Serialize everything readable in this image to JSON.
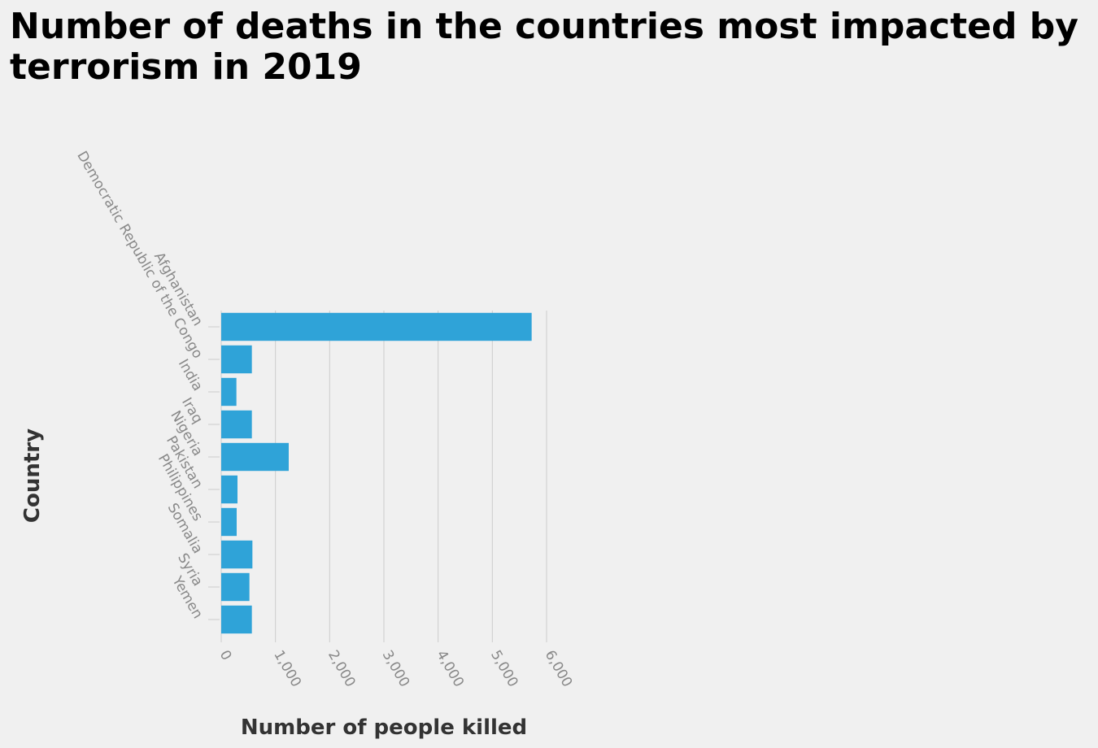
{
  "chart_data": {
    "type": "bar",
    "orientation": "horizontal",
    "title": "Number of deaths in the countries most impacted by terrorism in 2019",
    "xlabel": "Number of people killed",
    "ylabel": "Country",
    "categories": [
      "Afghanistan",
      "Democratic Republic of the Congo",
      "India",
      "Iraq",
      "Nigeria",
      "Pakistan",
      "Philippines",
      "Somalia",
      "Syria",
      "Yemen"
    ],
    "values": [
      5725,
      565,
      280,
      565,
      1245,
      300,
      285,
      575,
      520,
      565
    ],
    "xlim": [
      0,
      6000
    ],
    "xticks": [
      0,
      1000,
      2000,
      3000,
      4000,
      5000,
      6000
    ],
    "xtick_labels": [
      "0",
      "1,000",
      "2,000",
      "3,000",
      "4,000",
      "5,000",
      "6,000"
    ],
    "grid": "vertical",
    "bar_color": "#2fa3d8",
    "grid_color": "#cccccc",
    "tick_label_color": "#888888"
  }
}
